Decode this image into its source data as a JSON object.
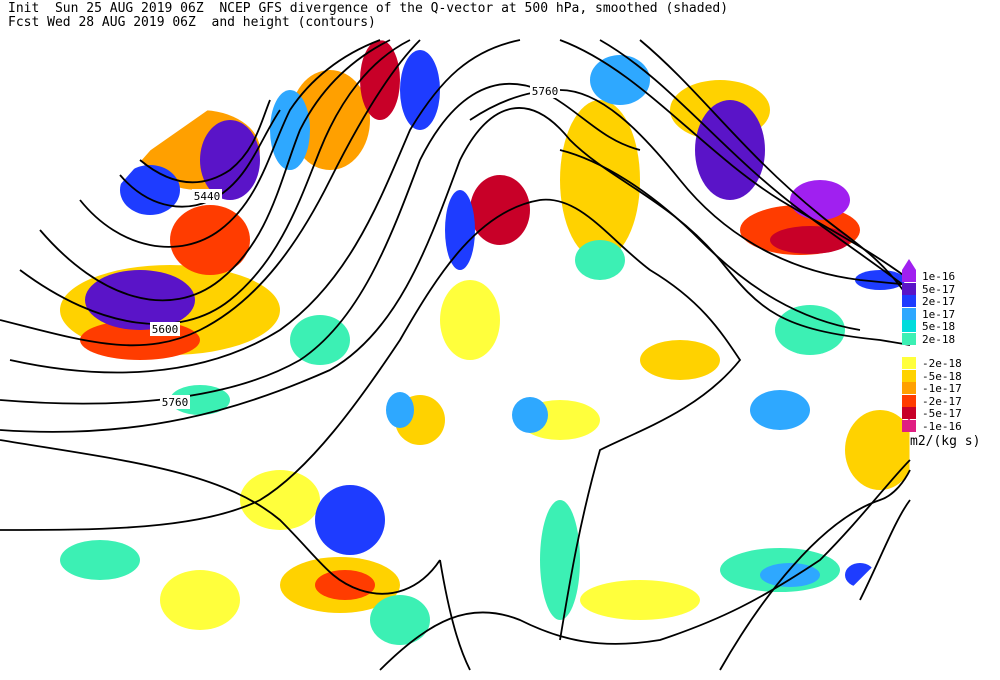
{
  "header": {
    "line1": "Init  Sun 25 AUG 2019 06Z  NCEP GFS divergence of the Q-vector at 500 hPa, smoothed (shaded)",
    "line2": "Fcst Wed 28 AUG 2019 06Z  and height (contours)"
  },
  "contour_labels": {
    "c5440": "5440",
    "c5600": "5600",
    "c5760a": "5760",
    "c5760b": "5760"
  },
  "colorbar": {
    "units": "m2/(kg s)",
    "entries": [
      {
        "label": "1e-16",
        "color": "#a020f0"
      },
      {
        "label": "5e-17",
        "color": "#5a14c8"
      },
      {
        "label": "2e-17",
        "color": "#1e3cff"
      },
      {
        "label": "1e-17",
        "color": "#2ea8ff"
      },
      {
        "label": "5e-18",
        "color": "#00dcdc"
      },
      {
        "label": "2e-18",
        "color": "#3cf0b4"
      },
      {
        "label": "-2e-18",
        "color": "#ffff3c"
      },
      {
        "label": "-5e-18",
        "color": "#ffd200"
      },
      {
        "label": "-1e-17",
        "color": "#ffa000"
      },
      {
        "label": "-2e-17",
        "color": "#ff3c00"
      },
      {
        "label": "-5e-17",
        "color": "#c80028"
      },
      {
        "label": "-1e-16",
        "color": "#e01e82"
      }
    ]
  }
}
